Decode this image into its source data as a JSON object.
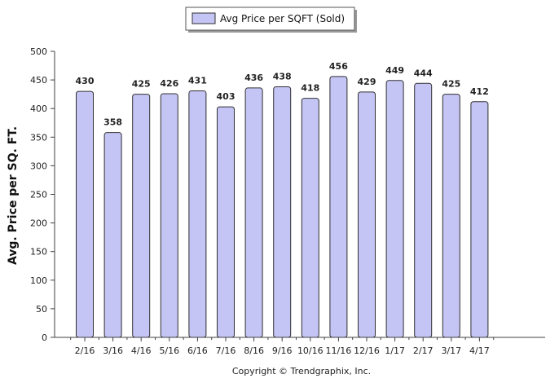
{
  "chart_data": {
    "type": "bar",
    "categories": [
      "2/16",
      "3/16",
      "4/16",
      "5/16",
      "6/16",
      "7/16",
      "8/16",
      "9/16",
      "10/16",
      "11/16",
      "12/16",
      "1/17",
      "2/17",
      "3/17",
      "4/17"
    ],
    "series": [
      {
        "name": "Avg Price per SQFT (Sold)",
        "values": [
          430,
          358,
          425,
          426,
          431,
          403,
          436,
          438,
          418,
          456,
          429,
          449,
          444,
          425,
          412
        ]
      }
    ],
    "ylabel": "Avg. Price per SQ. FT.",
    "xlabel": "",
    "ylim": [
      0,
      500
    ],
    "yticks": [
      0,
      50,
      100,
      150,
      200,
      250,
      300,
      350,
      400,
      450,
      500
    ],
    "legend_position": "top-center",
    "grid": false,
    "data_labels": true,
    "colors": {
      "bar_fill": "#c4c4f5",
      "bar_stroke": "#303030",
      "axis": "#404040"
    }
  },
  "footer": {
    "credit": "Copyright © Trendgraphix, Inc."
  }
}
